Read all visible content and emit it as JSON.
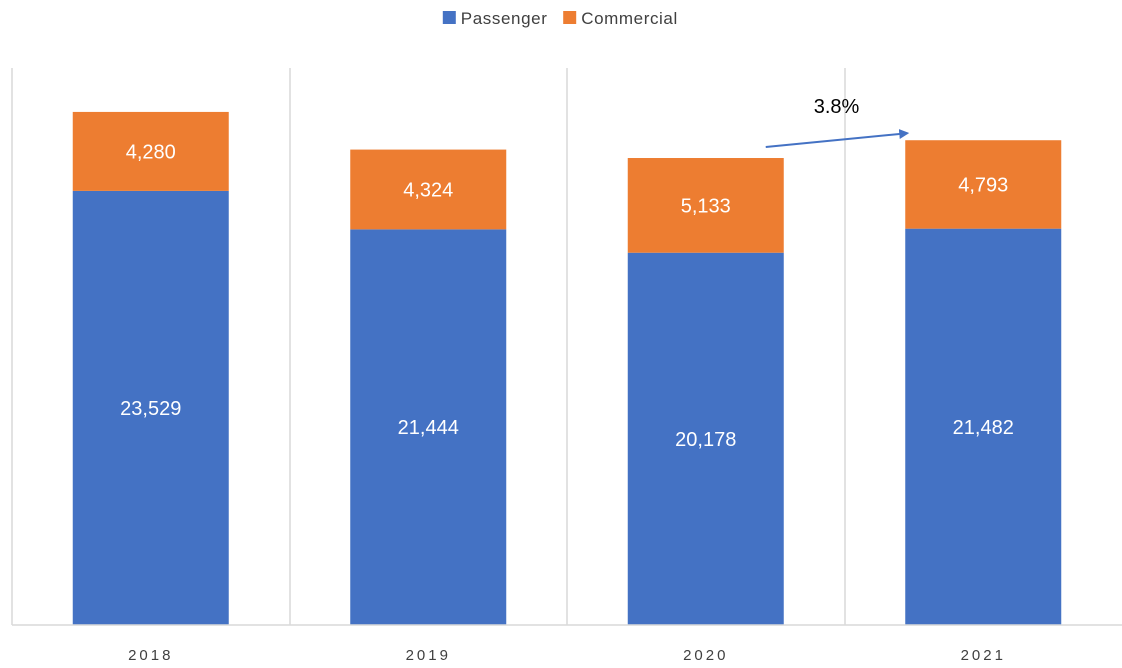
{
  "chart_data": {
    "type": "bar",
    "stacked": true,
    "title": "",
    "xlabel": "",
    "ylabel": "",
    "categories": [
      "2018",
      "2019",
      "2020",
      "2021"
    ],
    "series": [
      {
        "name": "Passenger",
        "color": "#4472C4",
        "values": [
          23529,
          21444,
          20178,
          21482
        ],
        "labels": [
          "23,529",
          "21,444",
          "20,178",
          "21,482"
        ]
      },
      {
        "name": "Commercial",
        "color": "#ED7D31",
        "values": [
          4280,
          4324,
          5133,
          4793
        ],
        "labels": [
          "4,280",
          "4,324",
          "5,133",
          "4,793"
        ]
      }
    ],
    "ylim": [
      0,
      30000
    ],
    "grid": false,
    "category_separators": true,
    "y_axis_visible": false,
    "legend_position": "top-center",
    "annotations": [
      {
        "text": "3.8%",
        "type": "arrow",
        "from": "2020",
        "to": "2021"
      }
    ]
  }
}
